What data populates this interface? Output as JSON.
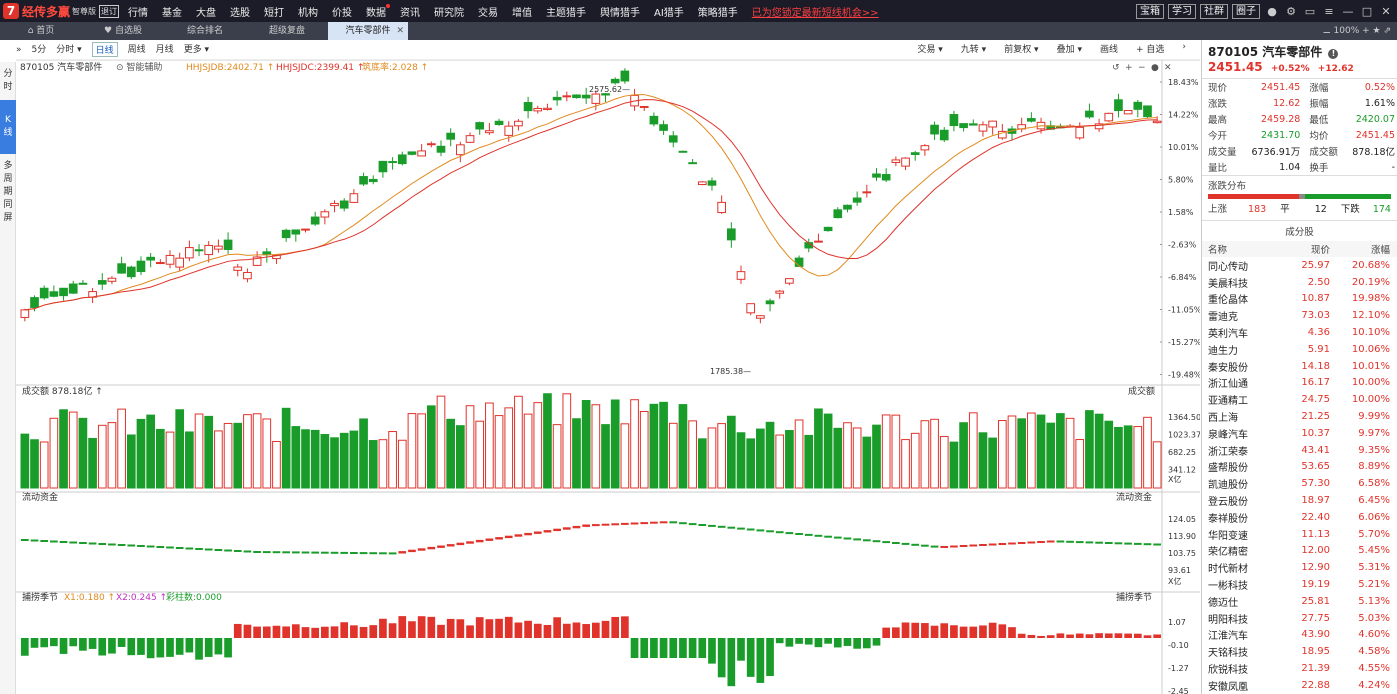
{
  "app": {
    "name": "经传多赢",
    "edition": "智尊版",
    "ver": "退订"
  },
  "menu": [
    {
      "label": "行情"
    },
    {
      "label": "基金"
    },
    {
      "label": "大盘"
    },
    {
      "label": "选股"
    },
    {
      "label": "短打"
    },
    {
      "label": "机构"
    },
    {
      "label": "价投"
    },
    {
      "label": "数据",
      "dot": true
    },
    {
      "label": "资讯"
    },
    {
      "label": "研究院"
    },
    {
      "label": "交易"
    },
    {
      "label": "增值"
    },
    {
      "label": "主题猎手"
    },
    {
      "label": "舆情猎手"
    },
    {
      "label": "AI猎手"
    },
    {
      "label": "策略猎手"
    }
  ],
  "promo": "已为您锁定最新短线机会>>",
  "top_buttons": [
    "宝箱",
    "学习",
    "社群",
    "圈子"
  ],
  "tabs": [
    {
      "label": "首页",
      "icon": "home-icon"
    },
    {
      "label": "自选股",
      "icon": "heart-icon"
    },
    {
      "label": "综合排名"
    },
    {
      "label": "超级复盘"
    },
    {
      "label": "汽车零部件",
      "active": true
    }
  ],
  "zoom": "100%",
  "left_tabs": [
    "分时",
    "K线",
    "多周期同屏"
  ],
  "toolbar": {
    "items": [
      "5分",
      "分时",
      "日线",
      "周线",
      "月线",
      "更多"
    ],
    "active": "日线",
    "right": [
      "交易",
      "九转",
      "前复权",
      "叠加",
      "画线",
      "自选"
    ]
  },
  "main_legend": {
    "name": "870105 汽车零部件",
    "assist": "智能辅助",
    "ma1": "HHJSJDB:2402.71",
    "ma2": "HHJSJDC:2399.41",
    "ma3": "筑底率:2.028"
  },
  "price_axis": [
    "18.43%",
    "14.22%",
    "10.01%",
    "5.80%",
    "1.58%",
    "-2.63%",
    "-6.84%",
    "-11.05%",
    "-15.27%",
    "-19.48%"
  ],
  "hi_label": "2575.62",
  "lo_label": "1785.38",
  "vol_panel": {
    "title": "成交额",
    "value": "878.18亿",
    "axis": [
      "1364.50",
      "1023.37",
      "682.25",
      "341.12"
    ],
    "unit": "X亿",
    "right_label": "成交额"
  },
  "flow_panel": {
    "title": "流动资金",
    "axis": [
      "124.05",
      "113.90",
      "103.75",
      "93.61"
    ],
    "unit": "X亿",
    "right_label": "流动资金"
  },
  "season_panel": {
    "title": "捕捞季节",
    "x1": "X1:0.180",
    "x2": "X2:0.245",
    "bars": "彩柱数:0.000",
    "axis": [
      "1.07",
      "-0.10",
      "-1.27",
      "-2.45"
    ],
    "right_label": "捕捞季节"
  },
  "chart_data": {
    "type": "candlestick",
    "note": "",
    "x": [],
    "y": []
  },
  "quote": {
    "name": "870105 汽车零部件",
    "price": "2451.45",
    "pct": "+0.52%",
    "chg": "+12.62",
    "rows": [
      [
        "现价",
        "2451.45",
        "red",
        "涨幅",
        "0.52%",
        "red"
      ],
      [
        "涨跌",
        "12.62",
        "red",
        "振幅",
        "1.61%",
        "blk"
      ],
      [
        "最高",
        "2459.28",
        "red",
        "最低",
        "2420.07",
        "grn"
      ],
      [
        "今开",
        "2431.70",
        "grn",
        "均价",
        "2451.45",
        "red"
      ],
      [
        "成交量",
        "6736.91万",
        "blk",
        "成交额",
        "878.18亿",
        "blk"
      ],
      [
        "量比",
        "1.04",
        "blk",
        "换手",
        "-",
        "blk"
      ]
    ]
  },
  "dist": {
    "title": "涨跌分布",
    "up_label": "上涨",
    "up": "183",
    "flat_label": "平",
    "flat": "12",
    "down_label": "下跌",
    "down": "174"
  },
  "constituents": {
    "title": "成分股",
    "headers": [
      "名称",
      "现价",
      "涨幅"
    ],
    "rows": [
      [
        "同心传动",
        "25.97",
        "20.68%"
      ],
      [
        "美晨科技",
        "2.50",
        "20.19%"
      ],
      [
        "重伦晶体",
        "10.87",
        "19.98%"
      ],
      [
        "雷迪克",
        "73.03",
        "12.10%"
      ],
      [
        "英利汽车",
        "4.36",
        "10.10%"
      ],
      [
        "迪生力",
        "5.91",
        "10.06%"
      ],
      [
        "秦安股份",
        "14.18",
        "10.01%"
      ],
      [
        "浙江仙通",
        "16.17",
        "10.00%"
      ],
      [
        "亚通精工",
        "24.75",
        "10.00%"
      ],
      [
        "西上海",
        "21.25",
        "9.99%"
      ],
      [
        "泉峰汽车",
        "10.37",
        "9.97%"
      ],
      [
        "浙江荣泰",
        "43.41",
        "9.35%"
      ],
      [
        "盛帮股份",
        "53.65",
        "8.89%"
      ],
      [
        "凯迪股份",
        "57.30",
        "6.58%"
      ],
      [
        "登云股份",
        "18.97",
        "6.45%"
      ],
      [
        "泰祥股份",
        "22.40",
        "6.06%"
      ],
      [
        "华阳变速",
        "11.13",
        "5.70%"
      ],
      [
        "荣亿精密",
        "12.00",
        "5.45%"
      ],
      [
        "时代新材",
        "12.90",
        "5.31%"
      ],
      [
        "一彬科技",
        "19.19",
        "5.21%"
      ],
      [
        "德迈仕",
        "25.81",
        "5.13%"
      ],
      [
        "明阳科技",
        "27.75",
        "5.03%"
      ],
      [
        "江淮汽车",
        "43.90",
        "4.60%"
      ],
      [
        "天铭科技",
        "18.95",
        "4.58%"
      ],
      [
        "欣锐科技",
        "21.39",
        "4.55%"
      ],
      [
        "安徽凤凰",
        "22.88",
        "4.24%"
      ]
    ]
  }
}
